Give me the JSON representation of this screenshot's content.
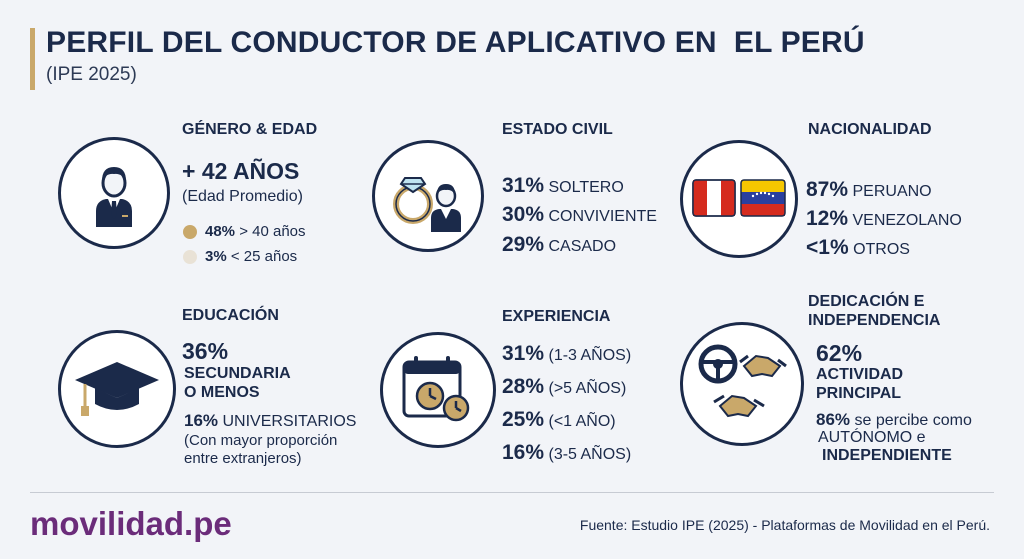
{
  "header": {
    "title": "PERFIL DEL CONDUCTOR DE APLICATIVO EN  EL PERÚ",
    "subtitle": "(IPE 2025)"
  },
  "sections": {
    "genero": {
      "title": "GÉNERO & EDAD",
      "headline": "+ 42 AÑOS",
      "caption": "(Edad Promedio)",
      "items": [
        {
          "value": "48%",
          "label": "> 40 años",
          "dot_color": "#c9a86a"
        },
        {
          "value": "3%",
          "label": "< 25 años",
          "dot_color": "#e9e2d6"
        }
      ]
    },
    "estado_civil": {
      "title": "ESTADO CIVIL",
      "items": [
        {
          "value": "31%",
          "label": "SOLTERO"
        },
        {
          "value": "30%",
          "label": "CONVIVIENTE"
        },
        {
          "value": "29%",
          "label": "CASADO"
        }
      ]
    },
    "nacionalidad": {
      "title": "NACIONALIDAD",
      "items": [
        {
          "value": "87%",
          "label": "PERUANO"
        },
        {
          "value": "12%",
          "label": "VENEZOLANO"
        },
        {
          "value": "<1%",
          "label": "OTROS"
        }
      ]
    },
    "educacion": {
      "title": "EDUCACIÓN",
      "headline": "36%",
      "headline_label_1": "SECUNDARIA",
      "headline_label_2": "O MENOS",
      "second_value": "16%",
      "second_label": "UNIVERSITARIOS",
      "note_1": "(Con mayor proporción",
      "note_2": "entre extranjeros)"
    },
    "experiencia": {
      "title": "EXPERIENCIA",
      "items": [
        {
          "value": "31%",
          "label": "(1-3 AÑOS)"
        },
        {
          "value": "28%",
          "label": "(>5 AÑOS)"
        },
        {
          "value": "25%",
          "label": "(<1 AÑO)"
        },
        {
          "value": "16%",
          "label": "(3-5 AÑOS)"
        }
      ]
    },
    "dedicacion": {
      "title_1": "DEDICACIÓN E",
      "title_2": "INDEPENDENCIA",
      "headline": "62%",
      "headline_label_1": "ACTIVIDAD",
      "headline_label_2": "PRINCIPAL",
      "second_value": "86%",
      "second_label": "se percibe como",
      "second_label_2": "AUTÓNOMO e",
      "second_label_3": "INDEPENDIENTE"
    }
  },
  "footer": {
    "brand": "movilidad.pe",
    "source": "Fuente: Estudio IPE (2025) - Plataformas de Movilidad en el Perú."
  },
  "colors": {
    "navy": "#1b2a4a",
    "gold": "#c9a86a",
    "brand_purple": "#6b2c7a",
    "peru_red": "#d52b1e",
    "venezuela_yellow": "#f6c700",
    "venezuela_blue": "#2a3f9e"
  }
}
